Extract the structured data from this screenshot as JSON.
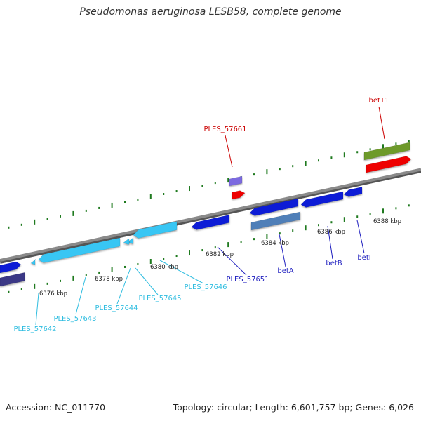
{
  "header": {
    "title": "Pseudomonas aeruginosa LESB58, complete genome"
  },
  "footer": {
    "accession": "Accession: NC_011770",
    "summary": "Topology: circular; Length: 6,601,757 bp; Genes: 6,026"
  },
  "colors": {
    "background": "#ffffff",
    "backbone": "#8a8a8a",
    "tick_green": "#1f7a1f",
    "kbp_label": "#222222",
    "gene_blue": "#0a1fd6",
    "gene_cyan": "#37c6f4",
    "gene_steel": "#4f7fb8",
    "gene_purple": "#7b6be0",
    "gene_navy": "#3a3886",
    "gene_red": "#ee0000",
    "gene_olive": "#6e9a2c",
    "label_red": "#cc0000",
    "label_blue": "#1f1fbf",
    "label_cyan": "#2fbde0"
  },
  "kbp_ticks": [
    "6376 kbp",
    "6378 kbp",
    "6380 kbp",
    "6382 kbp",
    "6384 kbp",
    "6386 kbp",
    "6388 kbp"
  ],
  "gene_labels": [
    {
      "name": "betT1",
      "color": "label_red"
    },
    {
      "name": "PLES_57661",
      "color": "label_red"
    },
    {
      "name": "PLES_57651",
      "color": "label_blue"
    },
    {
      "name": "betA",
      "color": "label_blue"
    },
    {
      "name": "betB",
      "color": "label_blue"
    },
    {
      "name": "betI",
      "color": "label_blue"
    },
    {
      "name": "PLES_57646",
      "color": "label_cyan"
    },
    {
      "name": "PLES_57645",
      "color": "label_cyan"
    },
    {
      "name": "PLES_57644",
      "color": "label_cyan"
    },
    {
      "name": "PLES_57643",
      "color": "label_cyan"
    },
    {
      "name": "PLES_57642",
      "color": "label_cyan"
    }
  ]
}
